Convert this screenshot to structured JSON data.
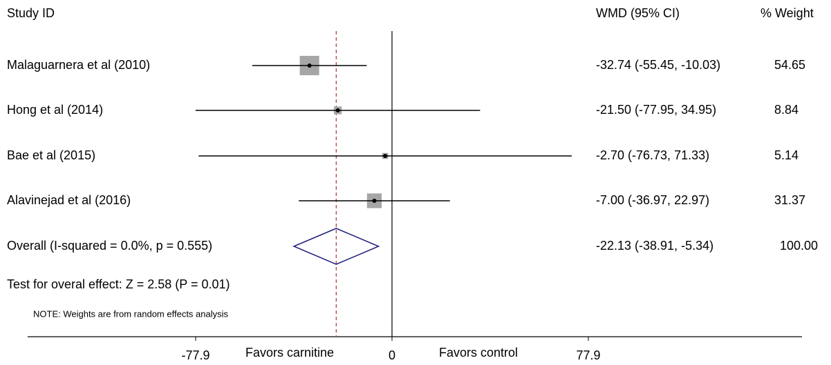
{
  "chart_data": {
    "type": "forest",
    "header": {
      "study": "Study ID",
      "effect": "WMD (95% CI)",
      "weight": "% Weight"
    },
    "studies": [
      {
        "label": "Malaguarnera et al (2010)",
        "estimate": -32.74,
        "lower": -55.45,
        "upper": -10.03,
        "effect_label": "-32.74 (-55.45, -10.03)",
        "weight": 54.65
      },
      {
        "label": "Hong et al  (2014)",
        "estimate": -21.5,
        "lower": -77.95,
        "upper": 34.95,
        "effect_label": "-21.50 (-77.95, 34.95)",
        "weight": 8.84
      },
      {
        "label": "Bae et al  (2015)",
        "estimate": -2.7,
        "lower": -76.73,
        "upper": 71.33,
        "effect_label": "-2.70 (-76.73, 71.33)",
        "weight": 5.14
      },
      {
        "label": "Alavinejad  et al  (2016)",
        "estimate": -7.0,
        "lower": -36.97,
        "upper": 22.97,
        "effect_label": "-7.00 (-36.97, 22.97)",
        "weight": 31.37
      }
    ],
    "overall": {
      "label": "Overall  (I-squared = 0.0%, p = 0.555)",
      "estimate": -22.13,
      "lower": -38.91,
      "upper": -5.34,
      "effect_label": "-22.13 (-38.91, -5.34)",
      "weight": {
        "value": 100,
        "label": "100.00"
      }
    },
    "test_label": "Test for overal effect: Z = 2.58 (P = 0.01)",
    "note": "NOTE: Weights are from random effects analysis",
    "xlim": [
      -77.9,
      77.9
    ],
    "xticks": [
      -77.9,
      0,
      77.9
    ],
    "favors": [
      "Favors carnitine",
      "Favors control"
    ],
    "marker_color": "#a6a6a6",
    "diamond_color": "#1f1f7a",
    "reference_line_color": "#b03030"
  }
}
